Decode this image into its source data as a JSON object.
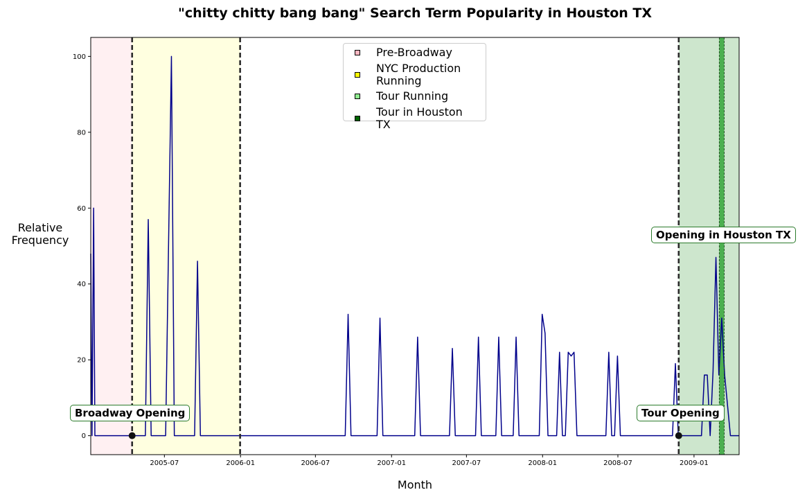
{
  "chart_data": {
    "type": "line",
    "title": "\"chitty chitty bang bang\" Search Term Popularity in Houston TX",
    "xlabel": "Month",
    "ylabel": "Relative\nFrequency",
    "xlim": [
      "2005-01-04",
      "2009-04-20"
    ],
    "ylim": [
      -5,
      105
    ],
    "x_ticks": [
      "2005-07",
      "2006-01",
      "2006-07",
      "2007-01",
      "2007-07",
      "2008-01",
      "2008-07",
      "2009-01"
    ],
    "y_ticks": [
      0,
      20,
      40,
      60,
      80,
      100
    ],
    "line_color": "#00008b",
    "series": [
      {
        "points": [
          [
            "2005-01-04",
            48
          ],
          [
            "2005-01-07",
            0
          ],
          [
            "2005-01-11",
            60
          ],
          [
            "2005-01-14",
            0
          ],
          [
            "2005-05-16",
            0
          ],
          [
            "2005-05-23",
            57
          ],
          [
            "2005-05-30",
            0
          ],
          [
            "2005-07-04",
            0
          ],
          [
            "2005-07-18",
            100
          ],
          [
            "2005-07-25",
            0
          ],
          [
            "2005-09-12",
            0
          ],
          [
            "2005-09-19",
            46
          ],
          [
            "2005-09-26",
            0
          ],
          [
            "2006-09-11",
            0
          ],
          [
            "2006-09-18",
            32
          ],
          [
            "2006-09-25",
            0
          ],
          [
            "2006-11-27",
            0
          ],
          [
            "2006-12-04",
            31
          ],
          [
            "2006-12-11",
            0
          ],
          [
            "2007-02-26",
            0
          ],
          [
            "2007-03-05",
            26
          ],
          [
            "2007-03-12",
            0
          ],
          [
            "2007-05-21",
            0
          ],
          [
            "2007-05-28",
            23
          ],
          [
            "2007-06-04",
            0
          ],
          [
            "2007-07-23",
            0
          ],
          [
            "2007-07-30",
            26
          ],
          [
            "2007-08-06",
            0
          ],
          [
            "2007-09-10",
            0
          ],
          [
            "2007-09-17",
            26
          ],
          [
            "2007-09-24",
            0
          ],
          [
            "2007-10-22",
            0
          ],
          [
            "2007-10-29",
            26
          ],
          [
            "2007-11-05",
            0
          ],
          [
            "2007-12-24",
            0
          ],
          [
            "2007-12-31",
            32
          ],
          [
            "2008-01-07",
            27
          ],
          [
            "2008-01-14",
            0
          ],
          [
            "2008-02-04",
            0
          ],
          [
            "2008-02-11",
            22
          ],
          [
            "2008-02-18",
            0
          ],
          [
            "2008-02-25",
            0
          ],
          [
            "2008-03-03",
            22
          ],
          [
            "2008-03-10",
            21
          ],
          [
            "2008-03-17",
            22
          ],
          [
            "2008-03-24",
            0
          ],
          [
            "2008-06-02",
            0
          ],
          [
            "2008-06-09",
            22
          ],
          [
            "2008-06-16",
            0
          ],
          [
            "2008-06-23",
            0
          ],
          [
            "2008-06-30",
            21
          ],
          [
            "2008-07-07",
            0
          ],
          [
            "2008-11-10",
            0
          ],
          [
            "2008-11-17",
            19
          ],
          [
            "2008-11-24",
            0
          ],
          [
            "2009-01-19",
            0
          ],
          [
            "2009-01-26",
            16
          ],
          [
            "2009-02-02",
            16
          ],
          [
            "2009-02-09",
            0
          ],
          [
            "2009-02-16",
            17
          ],
          [
            "2009-02-23",
            47
          ],
          [
            "2009-03-02",
            16
          ],
          [
            "2009-03-09",
            31
          ],
          [
            "2009-03-16",
            16
          ],
          [
            "2009-03-30",
            0
          ],
          [
            "2009-04-20",
            0
          ]
        ]
      }
    ],
    "periods": [
      {
        "label": "Pre-Broadway",
        "start": "2005-01-04",
        "end": "2005-04-14",
        "color": "#fff0f2",
        "swatch": "#ffb6c1"
      },
      {
        "label": "NYC Production Running",
        "start": "2005-04-14",
        "end": "2005-12-31",
        "color": "#ffffe0",
        "swatch": "#ffff00"
      },
      {
        "label": "Tour Running",
        "start": "2008-11-25",
        "end": "2009-04-20",
        "color": "#cde6cd",
        "swatch": "#90ee90"
      },
      {
        "label": "Tour in Houston TX",
        "start": "2009-03-03",
        "end": "2009-03-15",
        "color": "#4caf50",
        "swatch": "#006400"
      }
    ],
    "vlines": [
      "2005-04-14",
      "2005-12-31",
      "2008-11-25"
    ],
    "houston_lines": [
      "2009-03-03",
      "2009-03-15"
    ],
    "markers": [
      "2005-04-14",
      "2008-11-25"
    ],
    "legend_position": "upper-center",
    "annotations": [
      {
        "text": "Broadway Opening",
        "x": "2005-04-14"
      },
      {
        "text": "Tour Opening",
        "x": "2008-11-25"
      },
      {
        "text": "Opening in Houston TX",
        "x": "2009-03-09"
      }
    ]
  }
}
